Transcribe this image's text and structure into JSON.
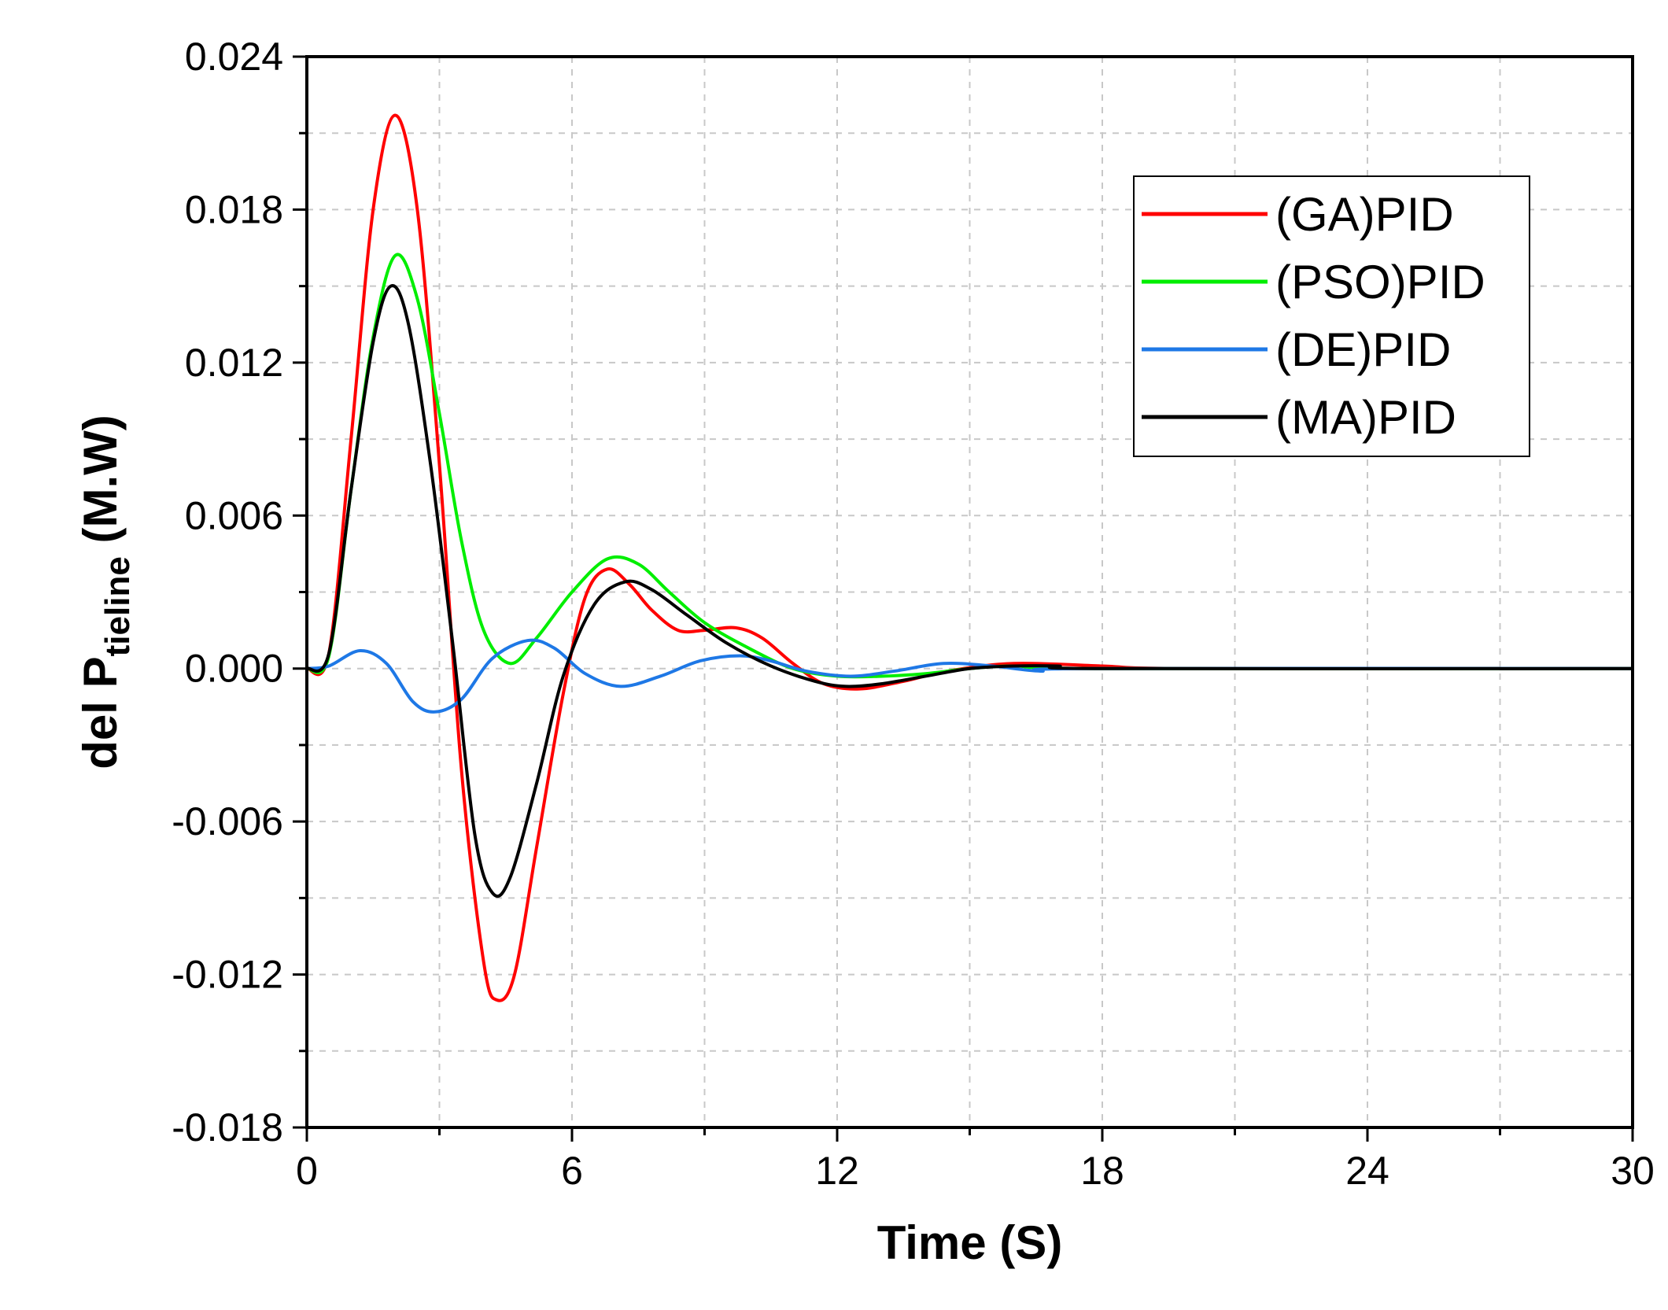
{
  "chart_data": {
    "type": "line",
    "title": "",
    "xlabel": "Time (S)",
    "ylabel": {
      "main": "del P",
      "subscript": "tieline",
      "suffix": " (M.W)"
    },
    "xlim": [
      0,
      30
    ],
    "ylim": [
      -0.018,
      0.024
    ],
    "xticks": [
      {
        "value": 0,
        "label": "0"
      },
      {
        "value": 6,
        "label": "6"
      },
      {
        "value": 12,
        "label": "12"
      },
      {
        "value": 18,
        "label": "18"
      },
      {
        "value": 24,
        "label": "24"
      },
      {
        "value": 30,
        "label": "30"
      }
    ],
    "yticks": [
      {
        "value": 0.024,
        "label": "0.024"
      },
      {
        "value": 0.018,
        "label": "0.018"
      },
      {
        "value": 0.012,
        "label": "0.012"
      },
      {
        "value": 0.006,
        "label": "0.006"
      },
      {
        "value": 0.0,
        "label": "0.000"
      },
      {
        "value": -0.006,
        "label": "-0.006"
      },
      {
        "value": -0.012,
        "label": "-0.012"
      },
      {
        "value": -0.018,
        "label": "-0.018"
      }
    ],
    "x_minor_ticks": [
      3,
      9,
      15,
      21,
      27
    ],
    "y_minor_ticks": [
      0.021,
      0.015,
      0.009,
      0.003,
      -0.003,
      -0.009,
      -0.015
    ],
    "grid": true,
    "legend_position": "top-right",
    "series": [
      {
        "name": "(GA)PID",
        "color": "#ff0000",
        "points": [
          [
            0,
            0
          ],
          [
            0.5,
            0.0006
          ],
          [
            1,
            0.009
          ],
          [
            1.5,
            0.018
          ],
          [
            2,
            0.0217
          ],
          [
            2.5,
            0.018
          ],
          [
            3,
            0.008
          ],
          [
            3.5,
            -0.004
          ],
          [
            4,
            -0.0115
          ],
          [
            4.3,
            -0.013
          ],
          [
            4.7,
            -0.012
          ],
          [
            5.2,
            -0.007
          ],
          [
            5.8,
            -0.001
          ],
          [
            6.3,
            0.0028
          ],
          [
            6.8,
            0.0039
          ],
          [
            7.3,
            0.0033
          ],
          [
            7.8,
            0.0023
          ],
          [
            8.4,
            0.0015
          ],
          [
            9,
            0.0015
          ],
          [
            9.7,
            0.0016
          ],
          [
            10.3,
            0.0012
          ],
          [
            11,
            0.0002
          ],
          [
            11.7,
            -0.0006
          ],
          [
            12.5,
            -0.0008
          ],
          [
            13.5,
            -0.0005
          ],
          [
            14.5,
            -0.0001
          ],
          [
            16,
            0.0002
          ],
          [
            18,
            0.0001
          ],
          [
            20,
            0
          ],
          [
            30,
            0
          ]
        ]
      },
      {
        "name": "(PSO)PID",
        "color": "#00ee00",
        "points": [
          [
            0,
            0
          ],
          [
            0.5,
            0.0005
          ],
          [
            1,
            0.007
          ],
          [
            1.5,
            0.013
          ],
          [
            2,
            0.0162
          ],
          [
            2.5,
            0.0145
          ],
          [
            3,
            0.01
          ],
          [
            3.5,
            0.005
          ],
          [
            4,
            0.0015
          ],
          [
            4.6,
            0.0002
          ],
          [
            5.2,
            0.0012
          ],
          [
            6,
            0.003
          ],
          [
            6.8,
            0.0043
          ],
          [
            7.5,
            0.0041
          ],
          [
            8.2,
            0.003
          ],
          [
            9,
            0.0018
          ],
          [
            10,
            0.0008
          ],
          [
            11,
            0
          ],
          [
            12,
            -0.0003
          ],
          [
            13,
            -0.0003
          ],
          [
            14,
            -0.0002
          ],
          [
            15,
            0
          ],
          [
            16,
            0.0001
          ],
          [
            18,
            0
          ],
          [
            30,
            0
          ]
        ]
      },
      {
        "name": "(DE)PID",
        "color": "#1e78e6",
        "points": [
          [
            0,
            0
          ],
          [
            0.5,
            0.0001
          ],
          [
            1.2,
            0.0007
          ],
          [
            1.8,
            0.0002
          ],
          [
            2.4,
            -0.0013
          ],
          [
            2.9,
            -0.0017
          ],
          [
            3.5,
            -0.0012
          ],
          [
            4.2,
            0.0004
          ],
          [
            5,
            0.0011
          ],
          [
            5.6,
            0.0008
          ],
          [
            6.3,
            -0.0002
          ],
          [
            7.1,
            -0.0007
          ],
          [
            8,
            -0.0003
          ],
          [
            8.9,
            0.0003
          ],
          [
            9.8,
            0.0005
          ],
          [
            10.5,
            0.0003
          ],
          [
            11.3,
            -0.0001
          ],
          [
            12.3,
            -0.0003
          ],
          [
            13.3,
            -0.0001
          ],
          [
            14.4,
            0.0002
          ],
          [
            15.5,
            0.0001
          ],
          [
            16.6,
            -0.0001
          ],
          [
            17.7,
            0
          ],
          [
            30,
            0
          ]
        ]
      },
      {
        "name": "(MA)PID",
        "color": "#000000",
        "points": [
          [
            0,
            0
          ],
          [
            0.5,
            0.0006
          ],
          [
            1,
            0.007
          ],
          [
            1.5,
            0.0128
          ],
          [
            1.9,
            0.015
          ],
          [
            2.3,
            0.0135
          ],
          [
            2.8,
            0.008
          ],
          [
            3.3,
            0.001
          ],
          [
            3.8,
            -0.0065
          ],
          [
            4.2,
            -0.0088
          ],
          [
            4.6,
            -0.0082
          ],
          [
            5.2,
            -0.0045
          ],
          [
            5.8,
            -0.0003
          ],
          [
            6.5,
            0.0025
          ],
          [
            7.2,
            0.0034
          ],
          [
            7.8,
            0.0031
          ],
          [
            8.6,
            0.0021
          ],
          [
            9.5,
            0.001
          ],
          [
            10.5,
            0.0001
          ],
          [
            11.5,
            -0.0005
          ],
          [
            12.2,
            -0.0007
          ],
          [
            13,
            -0.0006
          ],
          [
            14,
            -0.0003
          ],
          [
            15,
            0
          ],
          [
            16,
            0.0001
          ],
          [
            17,
            0.0001
          ],
          [
            18,
            0
          ],
          [
            30,
            0
          ]
        ]
      }
    ]
  }
}
